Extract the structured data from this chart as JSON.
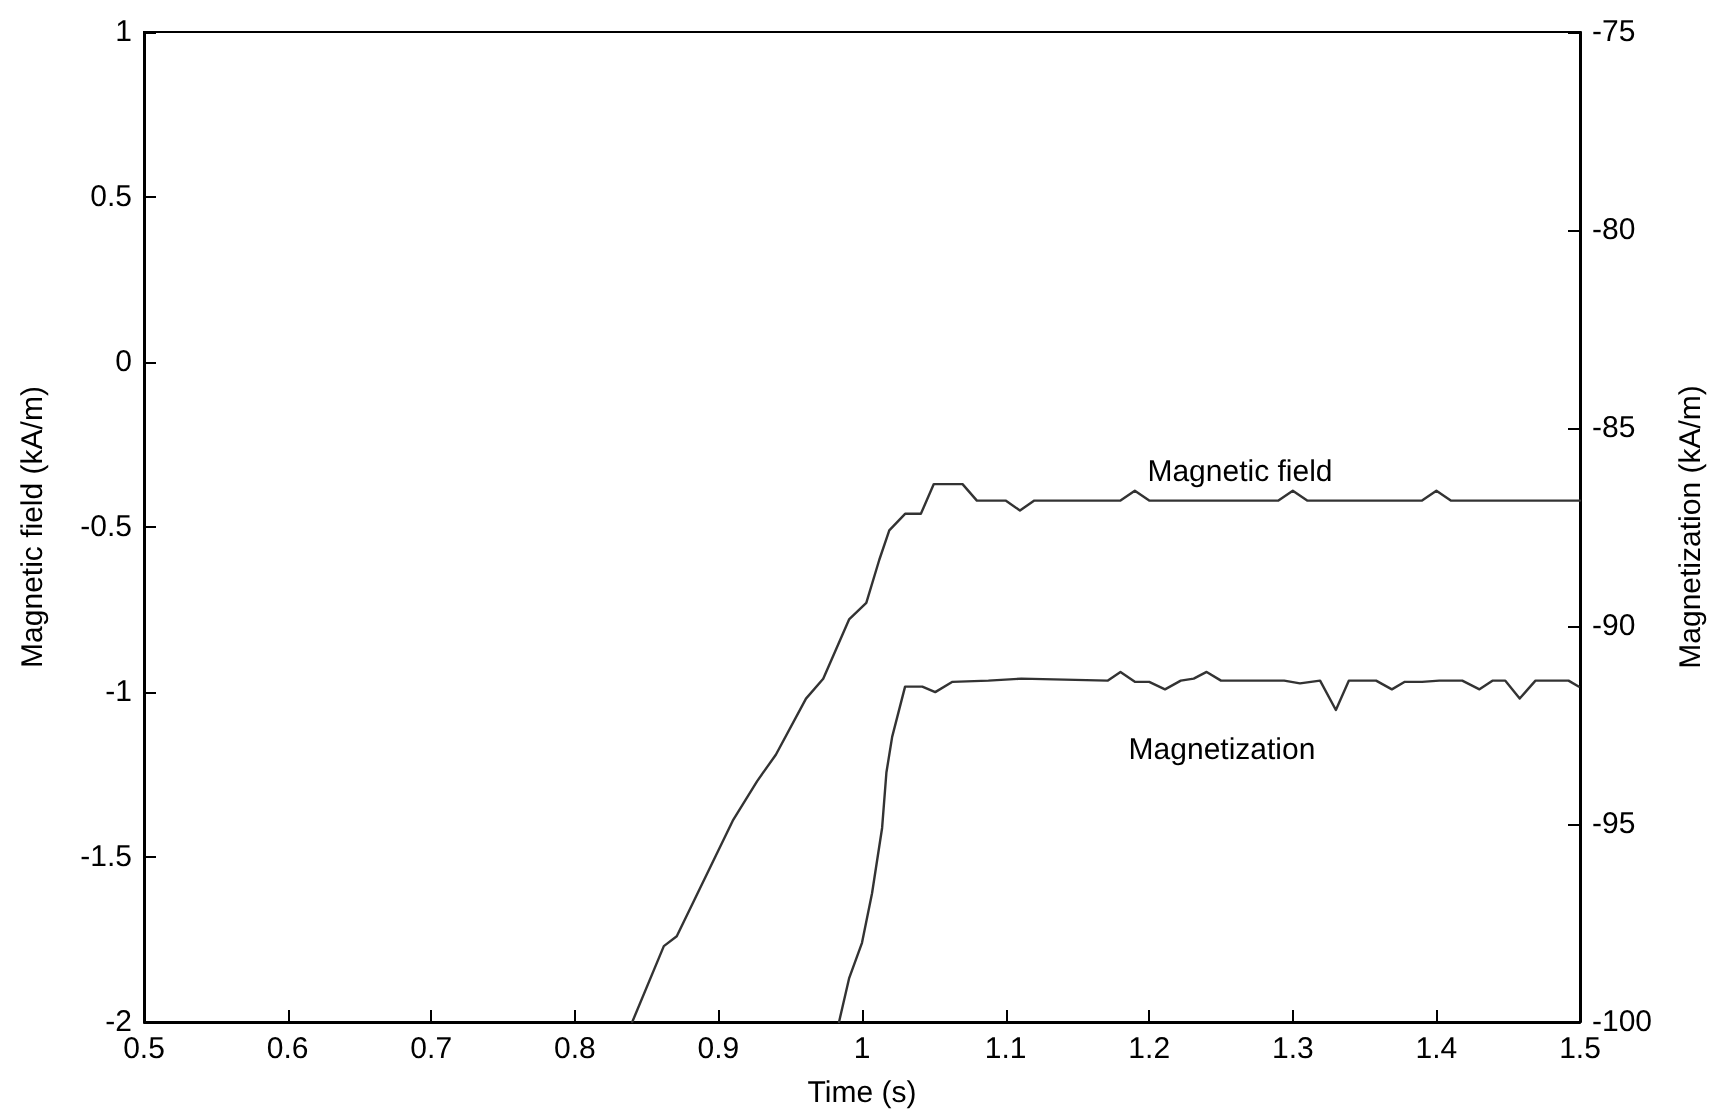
{
  "chart_data": {
    "type": "line",
    "xlabel": "Time (s)",
    "ylabel": "Magnetic field (kA/m)",
    "y2label": "Magnetization (kA/m)",
    "xlim": [
      0.5,
      1.5
    ],
    "xticks": [
      0.5,
      0.6,
      0.7,
      0.8,
      0.9,
      1,
      1.1,
      1.2,
      1.3,
      1.4,
      1.5
    ],
    "ylim": [
      -2,
      1
    ],
    "yticks": [
      -2,
      -1.5,
      -1,
      -0.5,
      0,
      0.5,
      1
    ],
    "y2lim": [
      -100,
      -75
    ],
    "y2ticks": [
      -100,
      -95,
      -90,
      -85,
      -80,
      -75
    ],
    "grid": false,
    "marker": "none",
    "line_style": "solid",
    "annotations": [
      "Magnetic field",
      "Magnetization"
    ],
    "series": [
      {
        "color": "#333333",
        "x": [
          0.84,
          0.862,
          0.871,
          0.91,
          0.927,
          0.94,
          0.961,
          0.973,
          0.991,
          1.003,
          1.012,
          1.019,
          1.03,
          1.041,
          1.05,
          1.07,
          1.08,
          1.1,
          1.11,
          1.12,
          1.18,
          1.19,
          1.2,
          1.29,
          1.3,
          1.31,
          1.39,
          1.4,
          1.41,
          1.5
        ],
        "values": [
          -2,
          -1.77,
          -1.74,
          -1.39,
          -1.27,
          -1.19,
          -1.02,
          -0.96,
          -0.78,
          -0.73,
          -0.6,
          -0.51,
          -0.46,
          -0.46,
          -0.37,
          -0.37,
          -0.42,
          -0.42,
          -0.45,
          -0.42,
          -0.42,
          -0.39,
          -0.42,
          -0.42,
          -0.39,
          -0.42,
          -0.42,
          -0.39,
          -0.42,
          -0.42
        ]
      },
      {
        "color": "#333333",
        "axis": "y2",
        "x": [
          0.984,
          0.991,
          1.0,
          1.007,
          1.014,
          1.017,
          1.021,
          1.03,
          1.042,
          1.051,
          1.063,
          1.088,
          1.111,
          1.171,
          1.18,
          1.19,
          1.2,
          1.211,
          1.222,
          1.231,
          1.24,
          1.25,
          1.294,
          1.305,
          1.319,
          1.33,
          1.339,
          1.358,
          1.369,
          1.378,
          1.39,
          1.402,
          1.418,
          1.43,
          1.439,
          1.448,
          1.458,
          1.469,
          1.492,
          1.499
        ],
        "values": [
          -100,
          -98.9,
          -98.0,
          -96.75,
          -95.1,
          -93.7,
          -92.8,
          -91.53,
          -91.53,
          -91.67,
          -91.41,
          -91.38,
          -91.33,
          -91.38,
          -91.16,
          -91.41,
          -91.41,
          -91.6,
          -91.38,
          -91.33,
          -91.16,
          -91.38,
          -91.38,
          -91.45,
          -91.38,
          -92.12,
          -91.38,
          -91.38,
          -91.6,
          -91.41,
          -91.41,
          -91.38,
          -91.38,
          -91.6,
          -91.38,
          -91.38,
          -91.83,
          -91.38,
          -91.38,
          -91.53
        ]
      }
    ]
  }
}
